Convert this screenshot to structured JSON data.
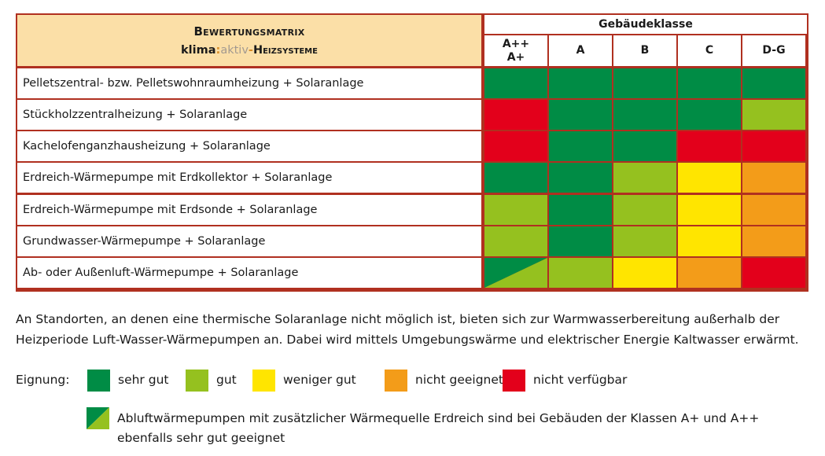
{
  "matrix": {
    "title_line1": "Bewertungsmatrix",
    "title_brand_a": "klima",
    "title_brand_sep": ":",
    "title_brand_b": "aktiv",
    "title_brand_dash": "-",
    "title_brand_c": "Heizsysteme",
    "group_header": "Gebäudeklasse",
    "classes": [
      {
        "line1": "A++",
        "line2": "A+"
      },
      {
        "line1": "A",
        "line2": ""
      },
      {
        "line1": "B",
        "line2": ""
      },
      {
        "line1": "C",
        "line2": ""
      },
      {
        "line1": "D-G",
        "line2": ""
      }
    ],
    "rows": [
      {
        "label": "Pelletszentral- bzw. Pelletswohnraumheizung + Solaranlage",
        "ratings": [
          "sehr_gut",
          "sehr_gut",
          "sehr_gut",
          "sehr_gut",
          "sehr_gut"
        ]
      },
      {
        "label": "Stückholzzentralheizung + Solaranlage",
        "ratings": [
          "nicht_verfuegbar",
          "sehr_gut",
          "sehr_gut",
          "sehr_gut",
          "gut"
        ]
      },
      {
        "label": "Kachelofenganzhausheizung + Solaranlage",
        "ratings": [
          "nicht_verfuegbar",
          "sehr_gut",
          "sehr_gut",
          "nicht_verfuegbar",
          "nicht_verfuegbar"
        ]
      },
      {
        "label": "Erdreich-Wärmepumpe mit Erdkollektor + Solaranlage",
        "ratings": [
          "sehr_gut",
          "sehr_gut",
          "gut",
          "weniger_gut",
          "nicht_geeignet"
        ]
      },
      {
        "label": "Erdreich-Wärmepumpe mit Erdsonde + Solaranlage",
        "ratings": [
          "gut",
          "sehr_gut",
          "gut",
          "weniger_gut",
          "nicht_geeignet"
        ]
      },
      {
        "label": "Grundwasser-Wärmepumpe + Solaranlage",
        "ratings": [
          "gut",
          "sehr_gut",
          "gut",
          "weniger_gut",
          "nicht_geeignet"
        ]
      },
      {
        "label": "Ab- oder Außenluft-Wärmepumpe + Solaranlage",
        "ratings": [
          "split",
          "gut",
          "weniger_gut",
          "nicht_geeignet",
          "nicht_verfuegbar"
        ]
      }
    ]
  },
  "colors": {
    "sehr_gut": "#008c45",
    "gut": "#95c11f",
    "weniger_gut": "#ffe500",
    "nicht_geeignet": "#f39c19",
    "nicht_verfuegbar": "#e3001b",
    "grid": "#b03020",
    "header_bg": "#fbdfa7"
  },
  "note": "An Standorten, an denen eine thermische Solaranlage nicht möglich ist, bieten sich zur Warmwasserbereitung außerhalb der Heizperiode Luft-Wasser-Wärmepumpen an. Dabei wird mittels Umgebungswärme und elektrischer Energie Kaltwasser erwärmt.",
  "legend": {
    "title": "Eignung:",
    "items": [
      {
        "key": "sehr_gut",
        "label": "sehr gut"
      },
      {
        "key": "gut",
        "label": "gut"
      },
      {
        "key": "weniger_gut",
        "label": "weniger gut"
      },
      {
        "key": "nicht_geeignet",
        "label": "nicht geeignet"
      },
      {
        "key": "nicht_verfuegbar",
        "label": "nicht verfügbar"
      }
    ],
    "footnote": "Abluftwärmepumpen mit zusätzlicher Wärmequelle Erdreich sind bei Gebäuden der Klassen A+ und A++ ebenfalls sehr gut geeignet"
  }
}
